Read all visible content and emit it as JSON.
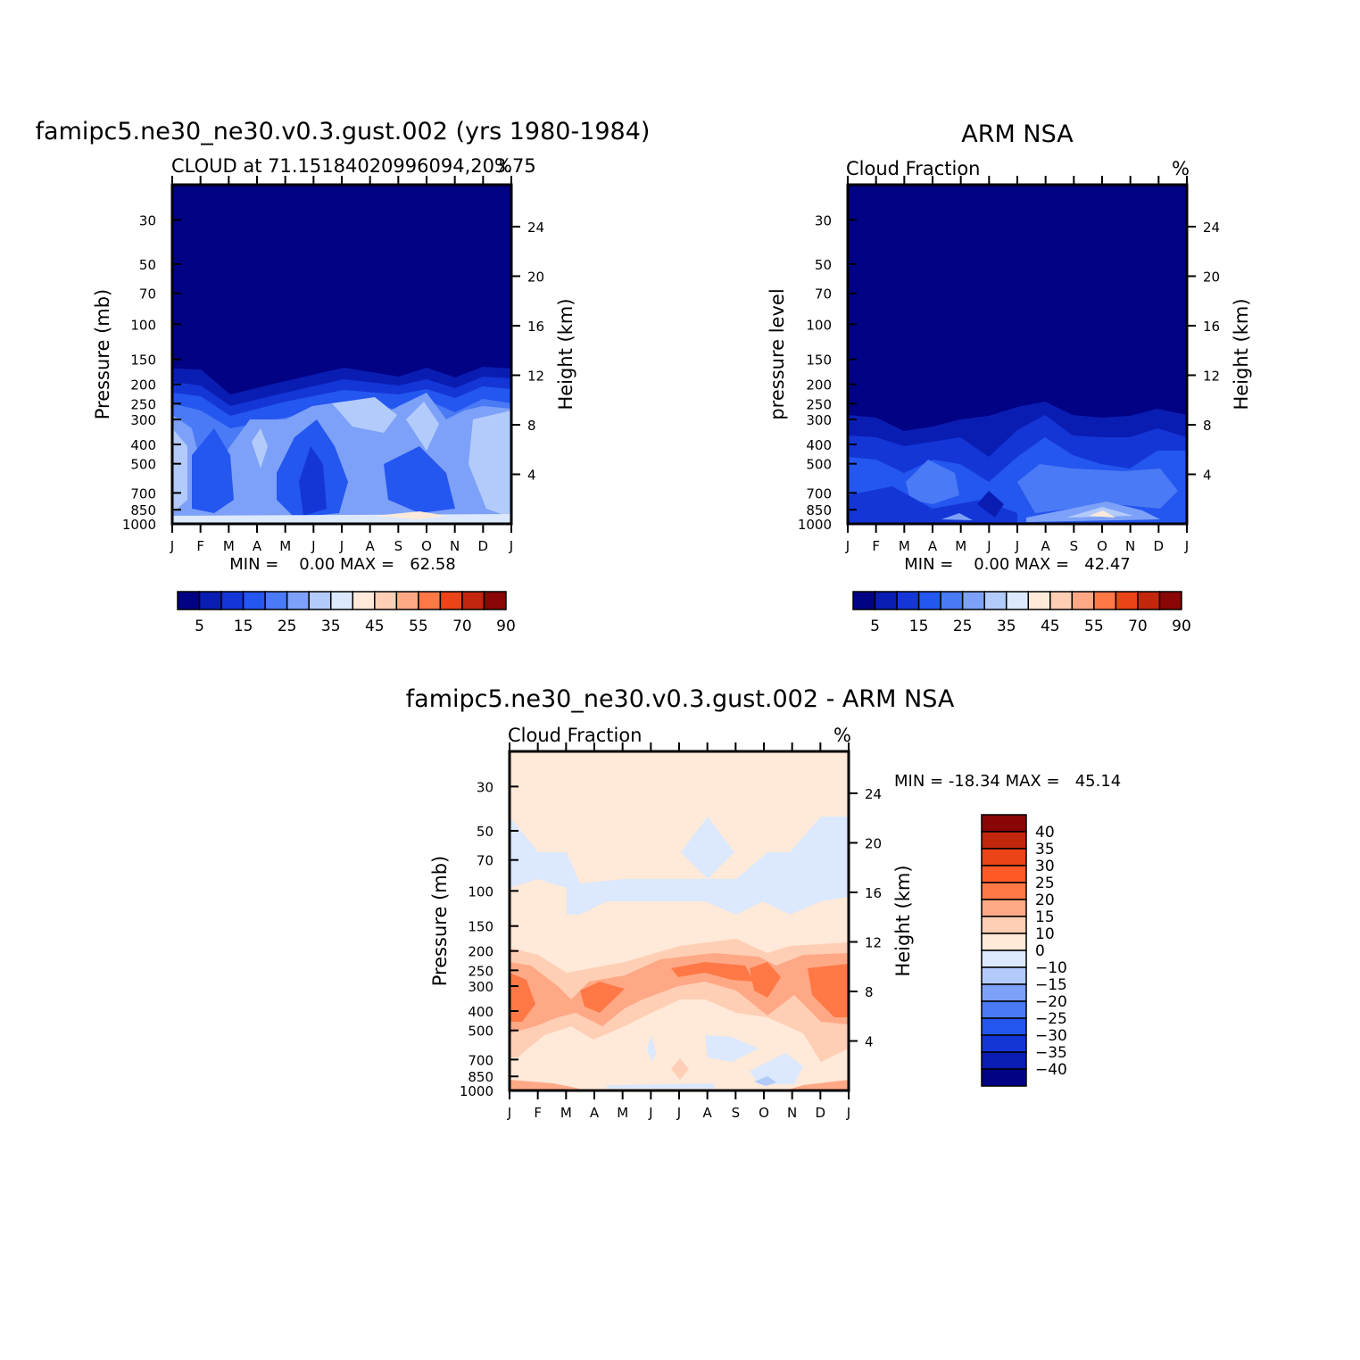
{
  "panels": {
    "model": {
      "main_title": "famipc5.ne30_ne30.v0.3.gust.002 (yrs 1980-1984)",
      "subtitle_left": "CLOUD at 71.15184020996094,203.75",
      "subtitle_right": "%",
      "stats": "MIN =    0.00 MAX =   62.58"
    },
    "obs": {
      "main_title": "ARM NSA",
      "subtitle_left": "Cloud Fraction",
      "subtitle_right": "%",
      "stats": "MIN =    0.00 MAX =   42.47"
    },
    "diff": {
      "main_title": "famipc5.ne30_ne30.v0.3.gust.002 - ARM NSA",
      "subtitle_left": "Cloud Fraction",
      "subtitle_right": "%",
      "stats": "MIN = -18.34 MAX =   45.14"
    }
  },
  "chart_data": [
    {
      "type": "heatmap",
      "title": "famipc5.ne30_ne30.v0.3.gust.002 (yrs 1980-1984)",
      "subtitle": "CLOUD at 71.15184020996094,203.75",
      "units": "%",
      "xlabel": "",
      "ylabel": "Pressure (mb)",
      "ylabel_right": "Height (km)",
      "x": [
        "J",
        "F",
        "M",
        "A",
        "M",
        "J",
        "J",
        "A",
        "S",
        "O",
        "N",
        "D",
        "J"
      ],
      "y_ticks": [
        30,
        50,
        70,
        100,
        150,
        200,
        250,
        300,
        400,
        500,
        700,
        850,
        1000
      ],
      "y_right_ticks": [
        24,
        20,
        16,
        12,
        8,
        4
      ],
      "ylim": [
        20,
        1000
      ],
      "min": 0.0,
      "max": 62.58,
      "colorbar_labels": [
        "5",
        "15",
        "25",
        "35",
        "45",
        "55",
        "70",
        "90"
      ],
      "colorbar_colors": [
        "#020285",
        "#0a1db3",
        "#1436d7",
        "#2456f0",
        "#4a7af5",
        "#7da1f8",
        "#b3cbfb",
        "#dbe8fd",
        "#ffe9d8",
        "#ffcfb5",
        "#ffa886",
        "#ff7846",
        "#eb4417",
        "#c2260d",
        "#8a0606"
      ]
    },
    {
      "type": "heatmap",
      "title": "ARM NSA",
      "subtitle": "Cloud Fraction",
      "units": "%",
      "ylabel": "pressure level",
      "ylabel_right": "Height (km)",
      "x": [
        "J",
        "F",
        "M",
        "A",
        "M",
        "J",
        "J",
        "A",
        "S",
        "O",
        "N",
        "D",
        "J"
      ],
      "y_ticks": [
        30,
        50,
        70,
        100,
        150,
        200,
        250,
        300,
        400,
        500,
        700,
        850,
        1000
      ],
      "y_right_ticks": [
        24,
        20,
        16,
        12,
        8,
        4
      ],
      "ylim": [
        20,
        1000
      ],
      "min": 0.0,
      "max": 42.47,
      "colorbar_labels": [
        "5",
        "15",
        "25",
        "35",
        "45",
        "55",
        "70",
        "90"
      ],
      "colorbar_colors": [
        "#020285",
        "#0a1db3",
        "#1436d7",
        "#2456f0",
        "#4a7af5",
        "#7da1f8",
        "#b3cbfb",
        "#dbe8fd",
        "#ffe9d8",
        "#ffcfb5",
        "#ffa886",
        "#ff7846",
        "#eb4417",
        "#c2260d",
        "#8a0606"
      ]
    },
    {
      "type": "heatmap",
      "title": "famipc5.ne30_ne30.v0.3.gust.002 - ARM NSA",
      "subtitle": "Cloud Fraction",
      "units": "%",
      "ylabel": "Pressure (mb)",
      "ylabel_right": "Height (km)",
      "x": [
        "J",
        "F",
        "M",
        "A",
        "M",
        "J",
        "J",
        "A",
        "S",
        "O",
        "N",
        "D",
        "J"
      ],
      "y_ticks": [
        30,
        50,
        70,
        100,
        150,
        200,
        250,
        300,
        400,
        500,
        700,
        850,
        1000
      ],
      "y_right_ticks": [
        24,
        20,
        16,
        12,
        8,
        4
      ],
      "ylim": [
        20,
        1000
      ],
      "min": -18.34,
      "max": 45.14,
      "colorbar_labels": [
        "40",
        "35",
        "30",
        "25",
        "20",
        "15",
        "10",
        "0",
        "-10",
        "-15",
        "-20",
        "-25",
        "-30",
        "-35",
        "-40"
      ],
      "colorbar_colors": [
        "#8a0606",
        "#c2260d",
        "#eb4417",
        "#ff5a28",
        "#ff7846",
        "#ffa886",
        "#ffcfb5",
        "#ffe9d8",
        "#dbe8fd",
        "#b3cbfb",
        "#7da1f8",
        "#4a7af5",
        "#2456f0",
        "#1436d7",
        "#0a1db3",
        "#020285"
      ]
    }
  ]
}
